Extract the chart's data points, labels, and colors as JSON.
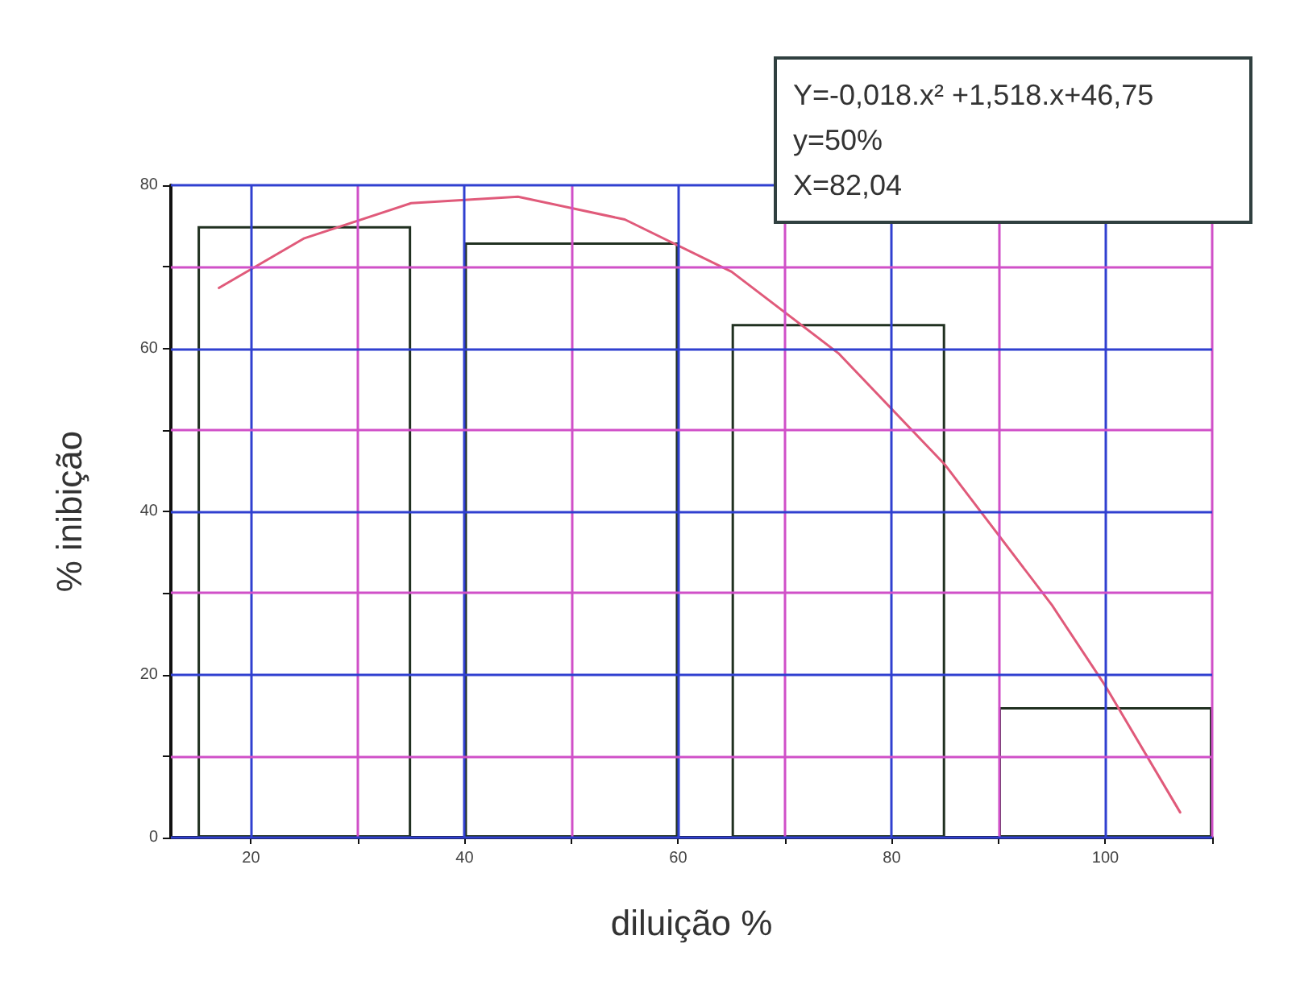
{
  "chart_data": {
    "type": "bar",
    "xlabel": "diluição %",
    "ylabel": "% inibição",
    "x": [
      25,
      50,
      75,
      100
    ],
    "series": [
      {
        "color": "#ffffff",
        "values": [
          75,
          73,
          63,
          16
        ]
      },
      {
        "type": "line",
        "color": "#e05a7a",
        "x": [
          17,
          25,
          35,
          45,
          55,
          65,
          75,
          85,
          95,
          100,
          107
        ],
        "values": [
          67.4,
          73.5,
          77.8,
          78.6,
          75.8,
          69.4,
          59.4,
          45.7,
          28.5,
          18.6,
          3.1
        ]
      }
    ],
    "xlim": [
      12.5,
      110
    ],
    "xticks": [
      20,
      {
        "value": 30,
        "label": null
      },
      40,
      {
        "value": 50,
        "label": null
      },
      60,
      {
        "value": 70,
        "label": null
      },
      80,
      {
        "value": 90,
        "label": null
      },
      100,
      {
        "value": 110,
        "label": null
      }
    ],
    "ylim": [
      0,
      80
    ],
    "yticks": [
      0,
      {
        "value": 10,
        "label": null
      },
      20,
      {
        "value": 30,
        "label": null
      },
      40,
      {
        "value": 50,
        "label": null
      },
      60,
      {
        "value": 70,
        "label": null
      },
      80
    ],
    "grid": true,
    "marker": "none",
    "line_style": "solid",
    "annotations": [
      "Y=-0,018.x² +1,518.x+46,75",
      "y=50%",
      "X=82,04"
    ]
  }
}
